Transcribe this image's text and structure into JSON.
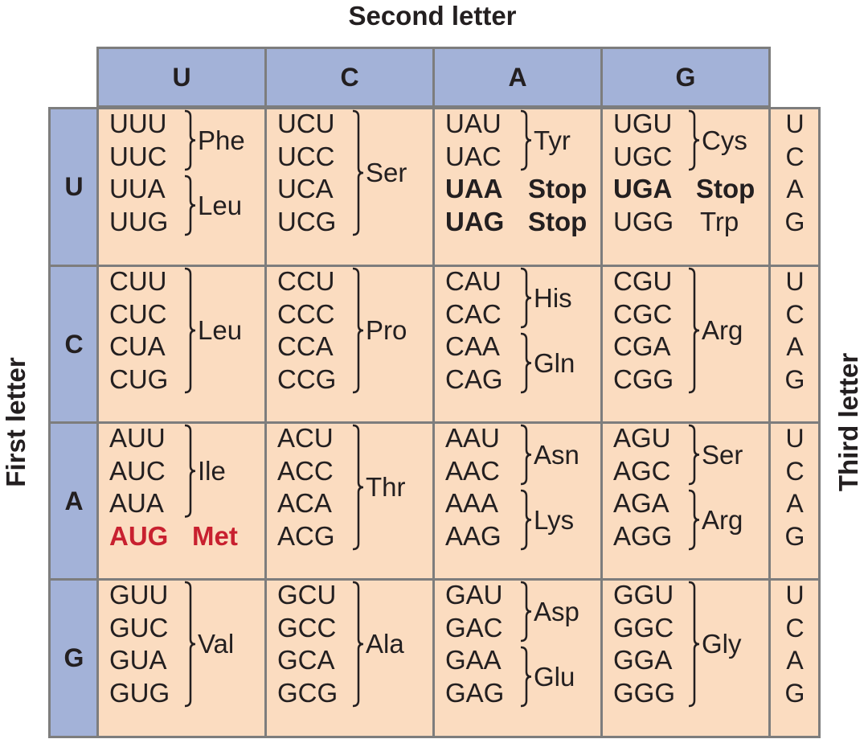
{
  "titles": {
    "second": "Second letter",
    "first": "First letter",
    "third": "Third letter"
  },
  "second_letters": [
    "U",
    "C",
    "A",
    "G"
  ],
  "first_letters": [
    "U",
    "C",
    "A",
    "G"
  ],
  "third_letters": [
    "U",
    "C",
    "A",
    "G"
  ],
  "colors": {
    "header_fill": "#a3b2d8",
    "cell_fill": "#fbdcc0",
    "grid_line": "#7d7d7d",
    "start_codon": "#c8202f"
  },
  "rows": [
    {
      "first": "U",
      "cells": [
        {
          "second": "U",
          "codons": [
            "UUU",
            "UUC",
            "UUA",
            "UUG"
          ],
          "groups": [
            {
              "label": "Phe",
              "from": 0,
              "to": 1,
              "style": "brace"
            },
            {
              "label": "Leu",
              "from": 2,
              "to": 3,
              "style": "brace"
            }
          ]
        },
        {
          "second": "C",
          "codons": [
            "UCU",
            "UCC",
            "UCA",
            "UCG"
          ],
          "groups": [
            {
              "label": "Ser",
              "from": 0,
              "to": 3,
              "style": "brace"
            }
          ]
        },
        {
          "second": "A",
          "codons": [
            "UAU",
            "UAC",
            "UAA",
            "UAG"
          ],
          "codon_styles": [
            "",
            "",
            "bold",
            "bold"
          ],
          "groups": [
            {
              "label": "Tyr",
              "from": 0,
              "to": 1,
              "style": "brace"
            },
            {
              "label": "Stop",
              "from": 2,
              "to": 2,
              "style": "bold"
            },
            {
              "label": "Stop",
              "from": 3,
              "to": 3,
              "style": "bold"
            }
          ]
        },
        {
          "second": "G",
          "codons": [
            "UGU",
            "UGC",
            "UGA",
            "UGG"
          ],
          "codon_styles": [
            "",
            "",
            "bold",
            ""
          ],
          "groups": [
            {
              "label": "Cys",
              "from": 0,
              "to": 1,
              "style": "brace"
            },
            {
              "label": "Stop",
              "from": 2,
              "to": 2,
              "style": "bold"
            },
            {
              "label": "Trp",
              "from": 3,
              "to": 3,
              "style": "plain"
            }
          ]
        }
      ]
    },
    {
      "first": "C",
      "cells": [
        {
          "second": "U",
          "codons": [
            "CUU",
            "CUC",
            "CUA",
            "CUG"
          ],
          "groups": [
            {
              "label": "Leu",
              "from": 0,
              "to": 3,
              "style": "brace"
            }
          ]
        },
        {
          "second": "C",
          "codons": [
            "CCU",
            "CCC",
            "CCA",
            "CCG"
          ],
          "groups": [
            {
              "label": "Pro",
              "from": 0,
              "to": 3,
              "style": "brace"
            }
          ]
        },
        {
          "second": "A",
          "codons": [
            "CAU",
            "CAC",
            "CAA",
            "CAG"
          ],
          "groups": [
            {
              "label": "His",
              "from": 0,
              "to": 1,
              "style": "brace"
            },
            {
              "label": "Gln",
              "from": 2,
              "to": 3,
              "style": "brace"
            }
          ]
        },
        {
          "second": "G",
          "codons": [
            "CGU",
            "CGC",
            "CGA",
            "CGG"
          ],
          "groups": [
            {
              "label": "Arg",
              "from": 0,
              "to": 3,
              "style": "brace"
            }
          ]
        }
      ]
    },
    {
      "first": "A",
      "cells": [
        {
          "second": "U",
          "codons": [
            "AUU",
            "AUC",
            "AUA",
            "AUG"
          ],
          "codon_styles": [
            "",
            "",
            "",
            "red"
          ],
          "groups": [
            {
              "label": "Ile",
              "from": 0,
              "to": 2,
              "style": "brace"
            },
            {
              "label": "Met",
              "from": 3,
              "to": 3,
              "style": "red"
            }
          ]
        },
        {
          "second": "C",
          "codons": [
            "ACU",
            "ACC",
            "ACA",
            "ACG"
          ],
          "groups": [
            {
              "label": "Thr",
              "from": 0,
              "to": 3,
              "style": "brace"
            }
          ]
        },
        {
          "second": "A",
          "codons": [
            "AAU",
            "AAC",
            "AAA",
            "AAG"
          ],
          "groups": [
            {
              "label": "Asn",
              "from": 0,
              "to": 1,
              "style": "brace"
            },
            {
              "label": "Lys",
              "from": 2,
              "to": 3,
              "style": "brace"
            }
          ]
        },
        {
          "second": "G",
          "codons": [
            "AGU",
            "AGC",
            "AGA",
            "AGG"
          ],
          "groups": [
            {
              "label": "Ser",
              "from": 0,
              "to": 1,
              "style": "brace"
            },
            {
              "label": "Arg",
              "from": 2,
              "to": 3,
              "style": "brace"
            }
          ]
        }
      ]
    },
    {
      "first": "G",
      "cells": [
        {
          "second": "U",
          "codons": [
            "GUU",
            "GUC",
            "GUA",
            "GUG"
          ],
          "groups": [
            {
              "label": "Val",
              "from": 0,
              "to": 3,
              "style": "brace"
            }
          ]
        },
        {
          "second": "C",
          "codons": [
            "GCU",
            "GCC",
            "GCA",
            "GCG"
          ],
          "groups": [
            {
              "label": "Ala",
              "from": 0,
              "to": 3,
              "style": "brace"
            }
          ]
        },
        {
          "second": "A",
          "codons": [
            "GAU",
            "GAC",
            "GAA",
            "GAG"
          ],
          "groups": [
            {
              "label": "Asp",
              "from": 0,
              "to": 1,
              "style": "brace"
            },
            {
              "label": "Glu",
              "from": 2,
              "to": 3,
              "style": "brace"
            }
          ]
        },
        {
          "second": "G",
          "codons": [
            "GGU",
            "GGC",
            "GGA",
            "GGG"
          ],
          "groups": [
            {
              "label": "Gly",
              "from": 0,
              "to": 3,
              "style": "brace"
            }
          ]
        }
      ]
    }
  ]
}
